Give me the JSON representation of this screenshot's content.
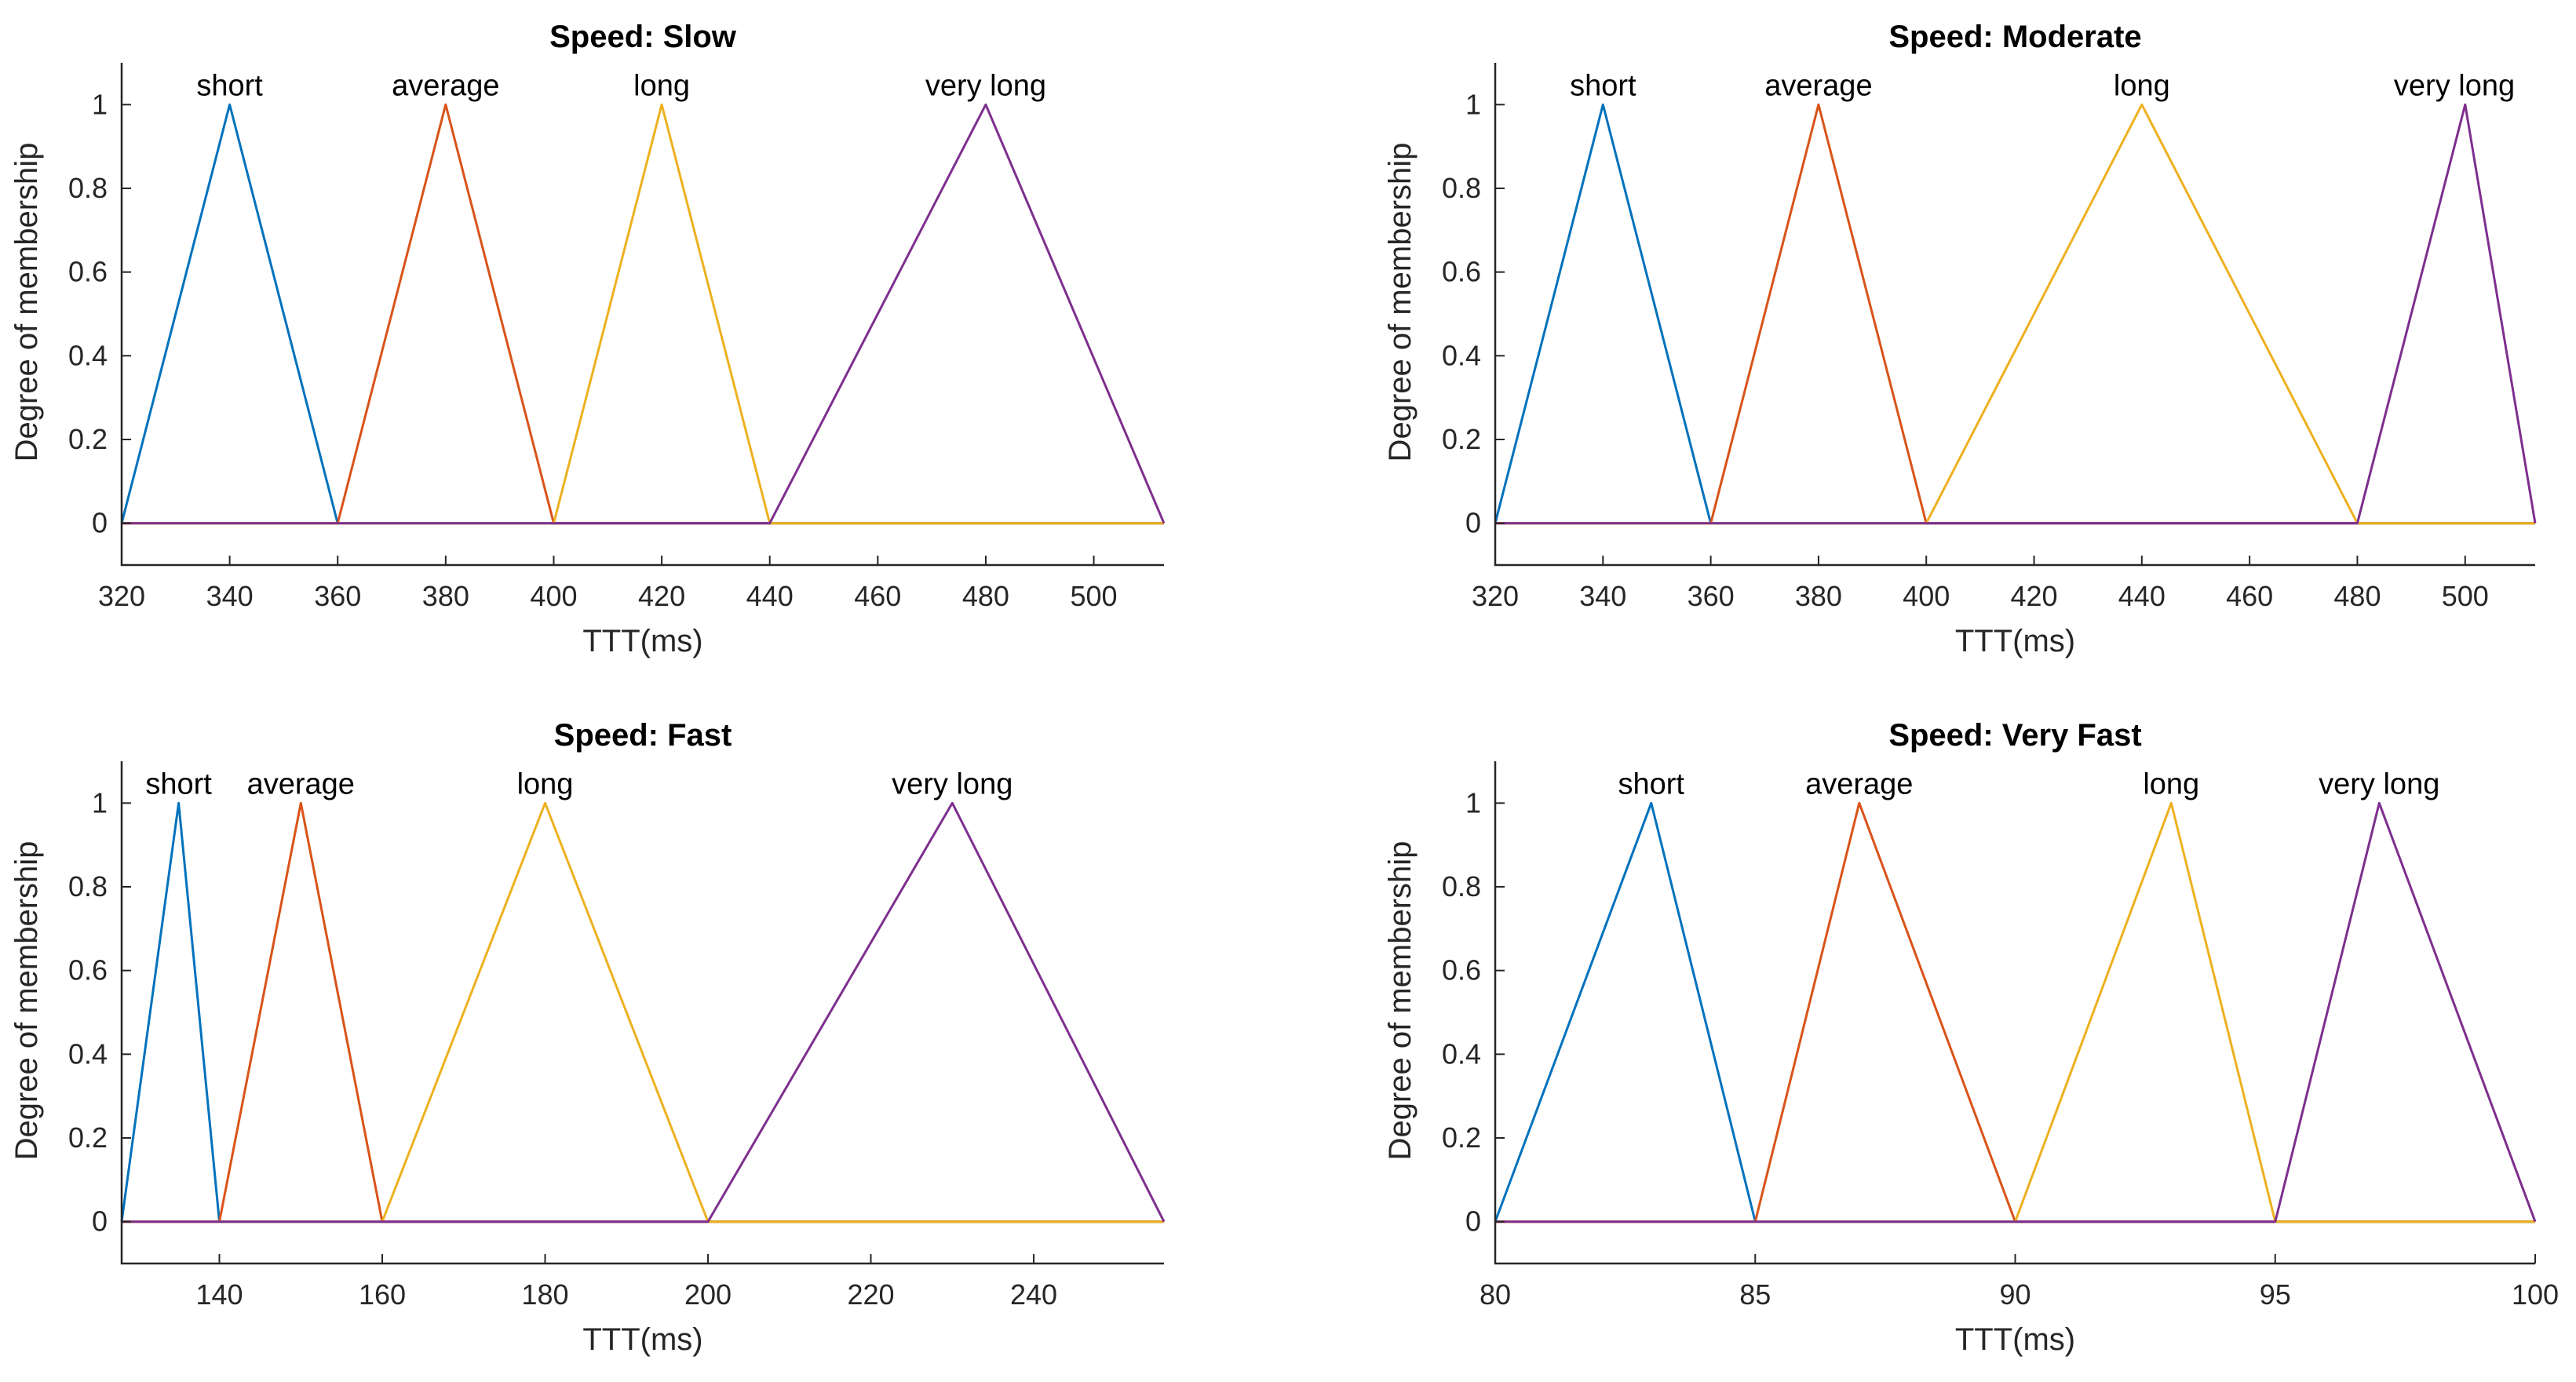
{
  "colors": {
    "series": [
      "#0072BD",
      "#D95319",
      "#EDB120",
      "#7E2F8E"
    ],
    "axis": "#262626",
    "background": "#ffffff"
  },
  "chart_data": [
    {
      "type": "line",
      "title": "Speed: Slow",
      "xlabel": "TTT(ms)",
      "ylabel": "Degree of membership",
      "xlim": [
        320,
        513
      ],
      "ylim": [
        -0.1,
        1.1
      ],
      "xticks": [
        320,
        340,
        360,
        380,
        400,
        420,
        440,
        460,
        480,
        500
      ],
      "xtick_labels": [
        "320",
        "340",
        "360",
        "380",
        "400",
        "420",
        "440",
        "460",
        "480",
        "500"
      ],
      "yticks": [
        0,
        0.2,
        0.4,
        0.6,
        0.8,
        1
      ],
      "ytick_labels": [
        "0",
        "0.2",
        "0.4",
        "0.6",
        "0.8",
        "1"
      ],
      "series": [
        {
          "name": "short",
          "points": [
            [
              320,
              0
            ],
            [
              340,
              1
            ],
            [
              360,
              0
            ],
            [
              513,
              0
            ]
          ]
        },
        {
          "name": "average",
          "points": [
            [
              320,
              0
            ],
            [
              360,
              0
            ],
            [
              380,
              1
            ],
            [
              400,
              0
            ],
            [
              513,
              0
            ]
          ]
        },
        {
          "name": "long",
          "points": [
            [
              320,
              0
            ],
            [
              400,
              0
            ],
            [
              420,
              1
            ],
            [
              440,
              0
            ],
            [
              513,
              0
            ]
          ]
        },
        {
          "name": "very long",
          "points": [
            [
              320,
              0
            ],
            [
              440,
              0
            ],
            [
              480,
              1
            ],
            [
              513,
              0
            ]
          ]
        }
      ],
      "annotations": [
        {
          "text": "short",
          "x": 340
        },
        {
          "text": "average",
          "x": 380
        },
        {
          "text": "long",
          "x": 420
        },
        {
          "text": "very long",
          "x": 480
        }
      ]
    },
    {
      "type": "line",
      "title": "Speed: Moderate",
      "xlabel": "TTT(ms)",
      "ylabel": "Degree of membership",
      "xlim": [
        320,
        513
      ],
      "ylim": [
        -0.1,
        1.1
      ],
      "xticks": [
        320,
        340,
        360,
        380,
        400,
        420,
        440,
        460,
        480,
        500
      ],
      "xtick_labels": [
        "320",
        "340",
        "360",
        "380",
        "400",
        "420",
        "440",
        "460",
        "480",
        "500"
      ],
      "yticks": [
        0,
        0.2,
        0.4,
        0.6,
        0.8,
        1
      ],
      "ytick_labels": [
        "0",
        "0.2",
        "0.4",
        "0.6",
        "0.8",
        "1"
      ],
      "series": [
        {
          "name": "short",
          "points": [
            [
              320,
              0
            ],
            [
              340,
              1
            ],
            [
              360,
              0
            ],
            [
              513,
              0
            ]
          ]
        },
        {
          "name": "average",
          "points": [
            [
              320,
              0
            ],
            [
              360,
              0
            ],
            [
              380,
              1
            ],
            [
              400,
              0
            ],
            [
              513,
              0
            ]
          ]
        },
        {
          "name": "long",
          "points": [
            [
              320,
              0
            ],
            [
              400,
              0
            ],
            [
              440,
              1
            ],
            [
              480,
              0
            ],
            [
              513,
              0
            ]
          ]
        },
        {
          "name": "very long",
          "points": [
            [
              320,
              0
            ],
            [
              480,
              0
            ],
            [
              500,
              1
            ],
            [
              513,
              0
            ]
          ]
        }
      ],
      "annotations": [
        {
          "text": "short",
          "x": 340
        },
        {
          "text": "average",
          "x": 380
        },
        {
          "text": "long",
          "x": 440
        },
        {
          "text": "very long",
          "x": 498
        }
      ]
    },
    {
      "type": "line",
      "title": "Speed: Fast",
      "xlabel": "TTT(ms)",
      "ylabel": "Degree of membership",
      "xlim": [
        128,
        256
      ],
      "ylim": [
        -0.1,
        1.1
      ],
      "xticks": [
        140,
        160,
        180,
        200,
        220,
        240
      ],
      "xtick_labels": [
        "140",
        "160",
        "180",
        "200",
        "220",
        "240"
      ],
      "yticks": [
        0,
        0.2,
        0.4,
        0.6,
        0.8,
        1
      ],
      "ytick_labels": [
        "0",
        "0.2",
        "0.4",
        "0.6",
        "0.8",
        "1"
      ],
      "series": [
        {
          "name": "short",
          "points": [
            [
              128,
              0
            ],
            [
              135,
              1
            ],
            [
              140,
              0
            ],
            [
              256,
              0
            ]
          ]
        },
        {
          "name": "average",
          "points": [
            [
              128,
              0
            ],
            [
              140,
              0
            ],
            [
              150,
              1
            ],
            [
              160,
              0
            ],
            [
              256,
              0
            ]
          ]
        },
        {
          "name": "long",
          "points": [
            [
              128,
              0
            ],
            [
              160,
              0
            ],
            [
              180,
              1
            ],
            [
              200,
              0
            ],
            [
              256,
              0
            ]
          ]
        },
        {
          "name": "very long",
          "points": [
            [
              128,
              0
            ],
            [
              200,
              0
            ],
            [
              230,
              1
            ],
            [
              256,
              0
            ]
          ]
        }
      ],
      "annotations": [
        {
          "text": "short",
          "x": 135
        },
        {
          "text": "average",
          "x": 150
        },
        {
          "text": "long",
          "x": 180
        },
        {
          "text": "very long",
          "x": 230
        }
      ]
    },
    {
      "type": "line",
      "title": "Speed: Very Fast",
      "xlabel": "TTT(ms)",
      "ylabel": "Degree of membership",
      "xlim": [
        80,
        100
      ],
      "ylim": [
        -0.1,
        1.1
      ],
      "xticks": [
        80,
        85,
        90,
        95,
        100
      ],
      "xtick_labels": [
        "80",
        "85",
        "90",
        "95",
        "100"
      ],
      "yticks": [
        0,
        0.2,
        0.4,
        0.6,
        0.8,
        1
      ],
      "ytick_labels": [
        "0",
        "0.2",
        "0.4",
        "0.6",
        "0.8",
        "1"
      ],
      "series": [
        {
          "name": "short",
          "points": [
            [
              80,
              0
            ],
            [
              83,
              1
            ],
            [
              85,
              0
            ],
            [
              100,
              0
            ]
          ]
        },
        {
          "name": "average",
          "points": [
            [
              80,
              0
            ],
            [
              85,
              0
            ],
            [
              87,
              1
            ],
            [
              90,
              0
            ],
            [
              100,
              0
            ]
          ]
        },
        {
          "name": "long",
          "points": [
            [
              80,
              0
            ],
            [
              90,
              0
            ],
            [
              93,
              1
            ],
            [
              95,
              0
            ],
            [
              100,
              0
            ]
          ]
        },
        {
          "name": "very long",
          "points": [
            [
              80,
              0
            ],
            [
              95,
              0
            ],
            [
              97,
              1
            ],
            [
              100,
              0
            ]
          ]
        }
      ],
      "annotations": [
        {
          "text": "short",
          "x": 83
        },
        {
          "text": "average",
          "x": 87
        },
        {
          "text": "long",
          "x": 93
        },
        {
          "text": "very long",
          "x": 97
        }
      ]
    }
  ]
}
